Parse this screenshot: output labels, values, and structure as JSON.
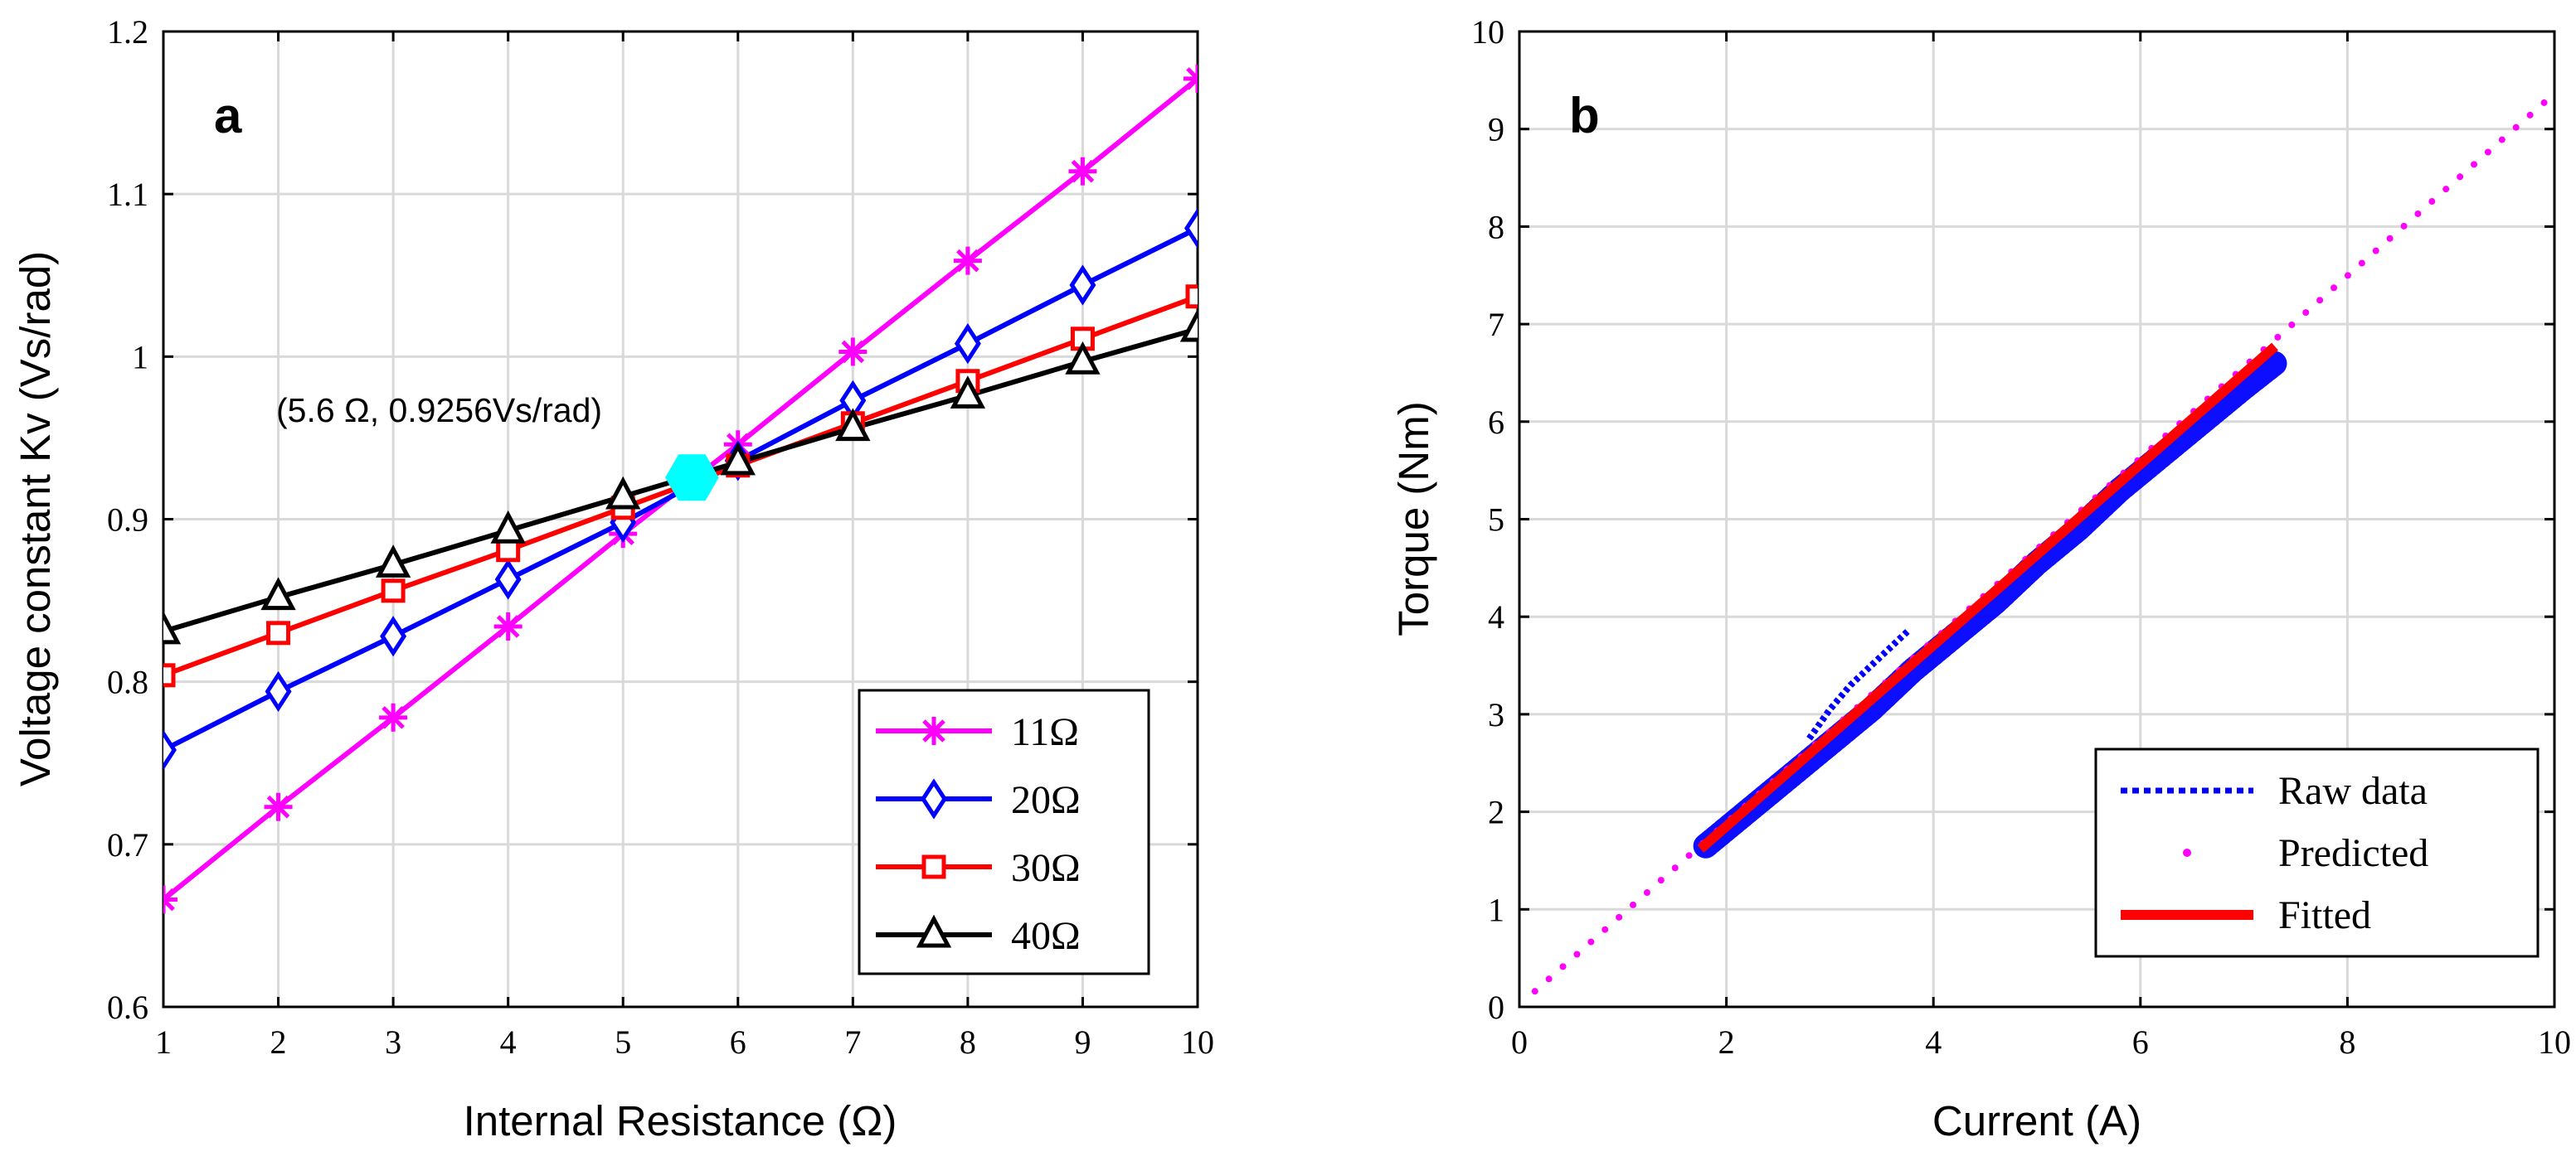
{
  "chart_data": [
    {
      "type": "line",
      "panel_label": "a",
      "xlabel": "Internal Resistance (Ω)",
      "ylabel": "Voltage constant Kv (Vs/rad)",
      "xlim": [
        1,
        10
      ],
      "ylim": [
        0.6,
        1.2
      ],
      "xticks": [
        1,
        2,
        3,
        4,
        5,
        6,
        7,
        8,
        9,
        10
      ],
      "yticks": [
        0.6,
        0.7,
        0.8,
        0.9,
        1,
        1.1,
        1.2
      ],
      "xtick_labels": [
        "1",
        "2",
        "3",
        "4",
        "5",
        "6",
        "7",
        "8",
        "9",
        "10"
      ],
      "ytick_labels": [
        "0.6",
        "0.7",
        "0.8",
        "0.9",
        "1",
        "1.1",
        "1.2"
      ],
      "grid": true,
      "legend_position": "bottom-right",
      "x": [
        1,
        2,
        3,
        4,
        5,
        6,
        7,
        8,
        9,
        10
      ],
      "series": [
        {
          "name": "11Ω",
          "color": "#ff00ff",
          "marker": "asterisk",
          "values": [
            0.666,
            0.723,
            0.778,
            0.834,
            0.891,
            0.946,
            1.003,
            1.059,
            1.114,
            1.171
          ]
        },
        {
          "name": "20Ω",
          "color": "#0000ff",
          "marker": "diamond",
          "values": [
            0.758,
            0.794,
            0.828,
            0.863,
            0.898,
            0.936,
            0.973,
            1.008,
            1.044,
            1.079
          ]
        },
        {
          "name": "30Ω",
          "color": "#ff0000",
          "marker": "square",
          "values": [
            0.804,
            0.83,
            0.856,
            0.881,
            0.907,
            0.933,
            0.959,
            0.985,
            1.011,
            1.037
          ]
        },
        {
          "name": "40Ω",
          "color": "#000000",
          "marker": "triangle",
          "values": [
            0.831,
            0.852,
            0.872,
            0.893,
            0.914,
            0.935,
            0.956,
            0.976,
            0.997,
            1.017
          ]
        }
      ],
      "annotation": {
        "text": "(5.6 Ω, 0.9256Vs/rad)",
        "point_x": 5.6,
        "point_y": 0.9256,
        "point_color": "#00ffff"
      }
    },
    {
      "type": "line",
      "panel_label": "b",
      "xlabel": "Current (A)",
      "ylabel": "Torque (Nm)",
      "xlim": [
        0,
        10
      ],
      "ylim": [
        0,
        10
      ],
      "xticks": [
        0,
        2,
        4,
        6,
        8,
        10
      ],
      "yticks": [
        0,
        1,
        2,
        3,
        4,
        5,
        6,
        7,
        8,
        9,
        10
      ],
      "xtick_labels": [
        "0",
        "2",
        "4",
        "6",
        "8",
        "10"
      ],
      "ytick_labels": [
        "0",
        "1",
        "2",
        "3",
        "4",
        "5",
        "6",
        "7",
        "8",
        "9",
        "10"
      ],
      "grid": true,
      "legend_position": "bottom-right",
      "series": [
        {
          "name": "Raw data",
          "color": "#0000ff",
          "style": "dotted",
          "x": [
            1.8,
            2.2,
            2.6,
            3.0,
            3.4,
            3.8,
            4.2,
            4.6,
            5.0,
            5.4,
            5.8,
            6.2,
            6.6,
            7.0,
            7.3
          ],
          "values": [
            1.65,
            2.0,
            2.35,
            2.7,
            3.05,
            3.45,
            3.8,
            4.15,
            4.55,
            4.9,
            5.3,
            5.65,
            6.0,
            6.35,
            6.6
          ]
        },
        {
          "name": "Predicted",
          "color": "#ff00ff",
          "style": "dots",
          "x": [
            0.15,
            9.9
          ],
          "values": [
            0.16,
            9.27
          ]
        },
        {
          "name": "Fitted",
          "color": "#ff0000",
          "style": "solid",
          "x": [
            1.75,
            7.3
          ],
          "values": [
            1.62,
            6.77
          ]
        }
      ],
      "raw_excursion": {
        "x": [
          2.8,
          3.0,
          3.2,
          3.4,
          3.6,
          3.75
        ],
        "values": [
          2.75,
          3.05,
          3.3,
          3.5,
          3.7,
          3.85
        ]
      }
    }
  ]
}
